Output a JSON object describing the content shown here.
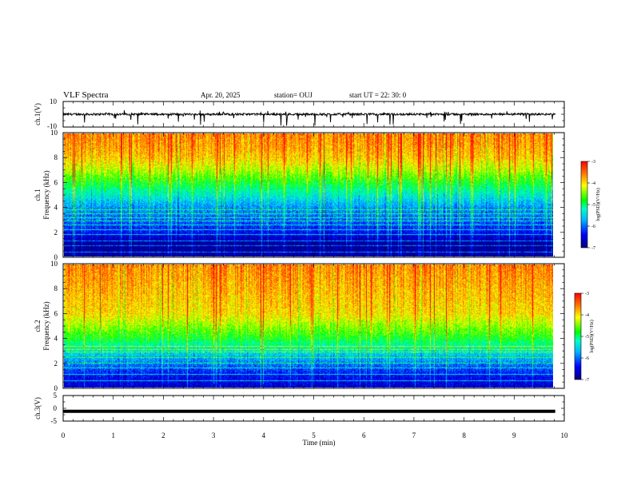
{
  "header": {
    "title": "VLF Spectra",
    "date": "Apr. 20, 2025",
    "station": "station= OUJ",
    "start": "start  UT =   22: 30: 0"
  },
  "chart_data": [
    {
      "type": "line",
      "panel": "ch1-waveform",
      "ylabel": "ch.1(V)",
      "ylim": [
        -10,
        10
      ],
      "y_ticks": [
        "10",
        "-10"
      ],
      "xlim": [
        0,
        10
      ],
      "baseline": 0,
      "note_values": "noisy trace near 0 V with spikes to about -10 V"
    },
    {
      "type": "heatmap",
      "panel": "ch1-spectrogram",
      "ylabel": "ch.1\nFrequency (kHz)",
      "ylim": [
        0,
        10
      ],
      "y_ticks": [
        "0",
        "2",
        "4",
        "6",
        "8",
        "10"
      ],
      "xlim": [
        0,
        10
      ],
      "x_end_data": 9.82,
      "colorbar": {
        "label": "log(PSD)(V²/Hz)",
        "range": [
          -7,
          -3
        ],
        "ticks": [
          "-3",
          "-4",
          "-5",
          "-6",
          "-7"
        ]
      },
      "profile_khz": [
        0,
        1,
        2,
        3,
        4,
        5,
        6,
        7,
        8,
        9,
        10
      ],
      "profile_log_psd": [
        -6.8,
        -6.9,
        -6.4,
        -6.0,
        -5.8,
        -5.3,
        -4.8,
        -4.3,
        -3.9,
        -3.7,
        -3.6
      ],
      "tones_khz": [
        0.4,
        0.9,
        1.3,
        1.8,
        2.2,
        2.6,
        2.9,
        3.2,
        3.5,
        3.8
      ]
    },
    {
      "type": "heatmap",
      "panel": "ch2-spectrogram",
      "ylabel": "ch.2\nFrequency (kHz)",
      "ylim": [
        0,
        10
      ],
      "y_ticks": [
        "0",
        "2",
        "4",
        "6",
        "8",
        "10"
      ],
      "xlim": [
        0,
        10
      ],
      "x_end_data": 9.82,
      "colorbar": {
        "label": "log(PSD)(V²/Hz)",
        "range": [
          -7,
          -3
        ],
        "ticks": [
          "-3",
          "-4",
          "-5",
          "-6",
          "-7"
        ]
      },
      "profile_khz": [
        0,
        1,
        2,
        3,
        4,
        5,
        6,
        7,
        8,
        9,
        10
      ],
      "profile_log_psd": [
        -6.6,
        -6.4,
        -5.9,
        -5.4,
        -4.8,
        -4.4,
        -4.0,
        -3.9,
        -3.8,
        -3.7,
        -3.6
      ],
      "tones_khz": [
        0.6,
        1.1,
        1.6,
        2.0,
        2.5,
        2.9,
        3.1,
        3.4
      ]
    },
    {
      "type": "line",
      "panel": "ch3-waveform",
      "ylabel": "ch.3(V)",
      "ylim": [
        -5,
        5
      ],
      "y_ticks": [
        "5",
        "0",
        "-5"
      ],
      "xlim": [
        0,
        10
      ],
      "baseline": -1.2,
      "note_values": "flat trace at about -1.2 V"
    }
  ],
  "x_axis": {
    "label": "Time (min)",
    "ticks": [
      "0",
      "1",
      "2",
      "3",
      "4",
      "5",
      "6",
      "7",
      "8",
      "9",
      "10"
    ]
  }
}
